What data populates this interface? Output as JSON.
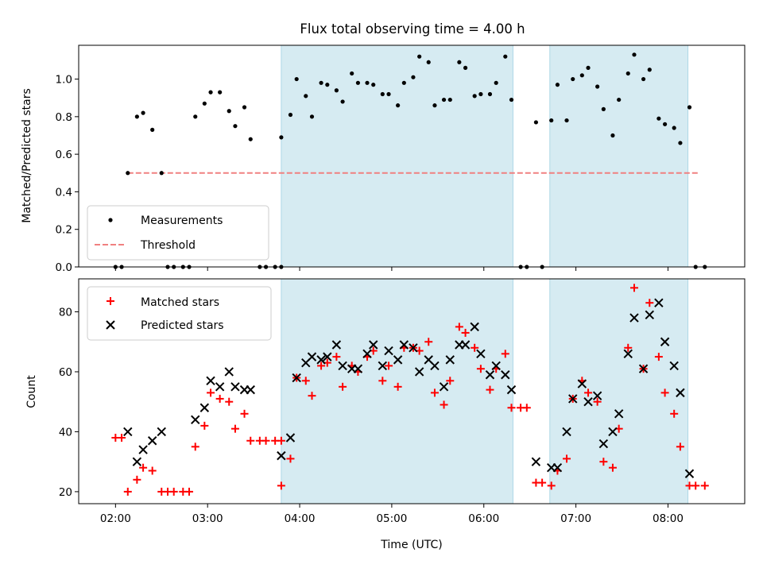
{
  "chart_data": [
    {
      "type": "scatter",
      "title": "Flux total observing time = 4.00 h",
      "ylabel": "Matched/Predicted stars",
      "xlabel": "",
      "ylim": [
        0,
        1.18
      ],
      "yticks": [
        "0.0",
        "0.2",
        "0.4",
        "0.6",
        "0.8",
        "1.0"
      ],
      "xlim": [
        "01:36",
        "08:50"
      ],
      "shaded_intervals": [
        [
          "03:48",
          "06:19"
        ],
        [
          "06:43",
          "08:13"
        ]
      ],
      "threshold": {
        "value": 0.5,
        "x_range": [
          "02:08",
          "08:20"
        ]
      },
      "legend_position": "lower left",
      "legend": [
        "Measurements",
        "Threshold"
      ],
      "colors": {
        "points": "#000000",
        "threshold": "#f08080",
        "shade": "#add8e6"
      },
      "series": [
        {
          "name": "Measurements",
          "points": [
            [
              "02:00",
              0.0
            ],
            [
              "02:04",
              0.0
            ],
            [
              "02:08",
              0.5
            ],
            [
              "02:14",
              0.8
            ],
            [
              "02:18",
              0.82
            ],
            [
              "02:24",
              0.73
            ],
            [
              "02:30",
              0.5
            ],
            [
              "02:34",
              0.0
            ],
            [
              "02:38",
              0.0
            ],
            [
              "02:44",
              0.0
            ],
            [
              "02:48",
              0.0
            ],
            [
              "02:52",
              0.8
            ],
            [
              "02:58",
              0.87
            ],
            [
              "03:02",
              0.93
            ],
            [
              "03:08",
              0.93
            ],
            [
              "03:14",
              0.83
            ],
            [
              "03:18",
              0.75
            ],
            [
              "03:24",
              0.85
            ],
            [
              "03:28",
              0.68
            ],
            [
              "03:34",
              0.0
            ],
            [
              "03:38",
              0.0
            ],
            [
              "03:44",
              0.0
            ],
            [
              "03:48",
              0.0
            ],
            [
              "03:48",
              0.69
            ],
            [
              "03:54",
              0.81
            ],
            [
              "03:58",
              1.0
            ],
            [
              "04:04",
              0.91
            ],
            [
              "04:08",
              0.8
            ],
            [
              "04:14",
              0.98
            ],
            [
              "04:18",
              0.97
            ],
            [
              "04:24",
              0.94
            ],
            [
              "04:28",
              0.88
            ],
            [
              "04:34",
              1.03
            ],
            [
              "04:38",
              0.98
            ],
            [
              "04:44",
              0.98
            ],
            [
              "04:48",
              0.97
            ],
            [
              "04:54",
              0.92
            ],
            [
              "04:58",
              0.92
            ],
            [
              "05:04",
              0.86
            ],
            [
              "05:08",
              0.98
            ],
            [
              "05:14",
              1.01
            ],
            [
              "05:18",
              1.12
            ],
            [
              "05:24",
              1.09
            ],
            [
              "05:28",
              0.86
            ],
            [
              "05:34",
              0.89
            ],
            [
              "05:38",
              0.89
            ],
            [
              "05:44",
              1.09
            ],
            [
              "05:48",
              1.06
            ],
            [
              "05:54",
              0.91
            ],
            [
              "05:58",
              0.92
            ],
            [
              "06:04",
              0.92
            ],
            [
              "06:08",
              0.98
            ],
            [
              "06:14",
              1.12
            ],
            [
              "06:18",
              0.89
            ],
            [
              "06:24",
              0.0
            ],
            [
              "06:28",
              0.0
            ],
            [
              "06:34",
              0.77
            ],
            [
              "06:38",
              0.0
            ],
            [
              "06:44",
              0.78
            ],
            [
              "06:48",
              0.97
            ],
            [
              "06:54",
              0.78
            ],
            [
              "06:58",
              1.0
            ],
            [
              "07:04",
              1.02
            ],
            [
              "07:08",
              1.06
            ],
            [
              "07:14",
              0.96
            ],
            [
              "07:18",
              0.84
            ],
            [
              "07:24",
              0.7
            ],
            [
              "07:28",
              0.89
            ],
            [
              "07:34",
              1.03
            ],
            [
              "07:38",
              1.13
            ],
            [
              "07:44",
              1.0
            ],
            [
              "07:48",
              1.05
            ],
            [
              "07:54",
              0.79
            ],
            [
              "07:58",
              0.76
            ],
            [
              "08:04",
              0.74
            ],
            [
              "08:08",
              0.66
            ],
            [
              "08:14",
              0.85
            ],
            [
              "08:18",
              0.0
            ],
            [
              "08:24",
              0.0
            ]
          ]
        }
      ]
    },
    {
      "type": "scatter",
      "title": "",
      "xlabel": "Time (UTC)",
      "ylabel": "Count",
      "ylim": [
        16,
        91
      ],
      "yticks": [
        "20",
        "40",
        "60",
        "80"
      ],
      "xlim": [
        "01:36",
        "08:50"
      ],
      "xticks": [
        "02:00",
        "03:00",
        "04:00",
        "05:00",
        "06:00",
        "07:00",
        "08:00"
      ],
      "shaded_intervals": [
        [
          "03:48",
          "06:19"
        ],
        [
          "06:43",
          "08:13"
        ]
      ],
      "legend_position": "upper left",
      "legend": [
        "Matched stars",
        "Predicted stars"
      ],
      "colors": {
        "matched": "#ff0000",
        "predicted": "#000000",
        "shade": "#add8e6"
      },
      "series": [
        {
          "name": "Matched stars",
          "points": [
            [
              "02:00",
              38
            ],
            [
              "02:04",
              38
            ],
            [
              "02:08",
              20
            ],
            [
              "02:14",
              24
            ],
            [
              "02:18",
              28
            ],
            [
              "02:24",
              27
            ],
            [
              "02:30",
              20
            ],
            [
              "02:34",
              20
            ],
            [
              "02:38",
              20
            ],
            [
              "02:44",
              20
            ],
            [
              "02:48",
              20
            ],
            [
              "02:52",
              35
            ],
            [
              "02:58",
              42
            ],
            [
              "03:02",
              53
            ],
            [
              "03:08",
              51
            ],
            [
              "03:14",
              50
            ],
            [
              "03:18",
              41
            ],
            [
              "03:24",
              46
            ],
            [
              "03:28",
              37
            ],
            [
              "03:34",
              37
            ],
            [
              "03:38",
              37
            ],
            [
              "03:44",
              37
            ],
            [
              "03:48",
              37
            ],
            [
              "03:48",
              22
            ],
            [
              "03:54",
              31
            ],
            [
              "03:58",
              58
            ],
            [
              "04:04",
              57
            ],
            [
              "04:08",
              52
            ],
            [
              "04:14",
              62
            ],
            [
              "04:18",
              63
            ],
            [
              "04:24",
              65
            ],
            [
              "04:28",
              55
            ],
            [
              "04:34",
              62
            ],
            [
              "04:38",
              60
            ],
            [
              "04:44",
              65
            ],
            [
              "04:48",
              67
            ],
            [
              "04:54",
              57
            ],
            [
              "04:58",
              62
            ],
            [
              "05:04",
              55
            ],
            [
              "05:08",
              68
            ],
            [
              "05:14",
              68
            ],
            [
              "05:18",
              67
            ],
            [
              "05:24",
              70
            ],
            [
              "05:28",
              53
            ],
            [
              "05:34",
              49
            ],
            [
              "05:38",
              57
            ],
            [
              "05:44",
              75
            ],
            [
              "05:48",
              73
            ],
            [
              "05:54",
              68
            ],
            [
              "05:58",
              61
            ],
            [
              "06:04",
              54
            ],
            [
              "06:08",
              61
            ],
            [
              "06:14",
              66
            ],
            [
              "06:18",
              48
            ],
            [
              "06:24",
              48
            ],
            [
              "06:28",
              48
            ],
            [
              "06:34",
              23
            ],
            [
              "06:38",
              23
            ],
            [
              "06:44",
              22
            ],
            [
              "06:48",
              27
            ],
            [
              "06:54",
              31
            ],
            [
              "06:58",
              51
            ],
            [
              "07:04",
              57
            ],
            [
              "07:08",
              53
            ],
            [
              "07:14",
              50
            ],
            [
              "07:18",
              30
            ],
            [
              "07:24",
              28
            ],
            [
              "07:28",
              41
            ],
            [
              "07:34",
              68
            ],
            [
              "07:38",
              88
            ],
            [
              "07:44",
              61
            ],
            [
              "07:48",
              83
            ],
            [
              "07:54",
              65
            ],
            [
              "07:58",
              53
            ],
            [
              "08:04",
              46
            ],
            [
              "08:08",
              35
            ],
            [
              "08:14",
              22
            ],
            [
              "08:18",
              22
            ],
            [
              "08:24",
              22
            ]
          ]
        },
        {
          "name": "Predicted stars",
          "points": [
            [
              "02:08",
              40
            ],
            [
              "02:14",
              30
            ],
            [
              "02:18",
              34
            ],
            [
              "02:24",
              37
            ],
            [
              "02:30",
              40
            ],
            [
              "02:52",
              44
            ],
            [
              "02:58",
              48
            ],
            [
              "03:02",
              57
            ],
            [
              "03:08",
              55
            ],
            [
              "03:14",
              60
            ],
            [
              "03:18",
              55
            ],
            [
              "03:24",
              54
            ],
            [
              "03:28",
              54
            ],
            [
              "03:48",
              32
            ],
            [
              "03:54",
              38
            ],
            [
              "03:58",
              58
            ],
            [
              "04:04",
              63
            ],
            [
              "04:08",
              65
            ],
            [
              "04:14",
              64
            ],
            [
              "04:18",
              65
            ],
            [
              "04:24",
              69
            ],
            [
              "04:28",
              62
            ],
            [
              "04:34",
              61
            ],
            [
              "04:38",
              61
            ],
            [
              "04:44",
              66
            ],
            [
              "04:48",
              69
            ],
            [
              "04:54",
              62
            ],
            [
              "04:58",
              67
            ],
            [
              "05:04",
              64
            ],
            [
              "05:08",
              69
            ],
            [
              "05:14",
              68
            ],
            [
              "05:18",
              60
            ],
            [
              "05:24",
              64
            ],
            [
              "05:28",
              62
            ],
            [
              "05:34",
              55
            ],
            [
              "05:38",
              64
            ],
            [
              "05:44",
              69
            ],
            [
              "05:48",
              69
            ],
            [
              "05:54",
              75
            ],
            [
              "05:58",
              66
            ],
            [
              "06:04",
              59
            ],
            [
              "06:08",
              62
            ],
            [
              "06:14",
              59
            ],
            [
              "06:18",
              54
            ],
            [
              "06:34",
              30
            ],
            [
              "06:44",
              28
            ],
            [
              "06:48",
              28
            ],
            [
              "06:54",
              40
            ],
            [
              "06:58",
              51
            ],
            [
              "07:04",
              56
            ],
            [
              "07:08",
              50
            ],
            [
              "07:14",
              52
            ],
            [
              "07:18",
              36
            ],
            [
              "07:24",
              40
            ],
            [
              "07:28",
              46
            ],
            [
              "07:34",
              66
            ],
            [
              "07:38",
              78
            ],
            [
              "07:44",
              61
            ],
            [
              "07:48",
              79
            ],
            [
              "07:54",
              83
            ],
            [
              "07:58",
              70
            ],
            [
              "08:04",
              62
            ],
            [
              "08:08",
              53
            ],
            [
              "08:14",
              26
            ]
          ]
        }
      ]
    }
  ]
}
